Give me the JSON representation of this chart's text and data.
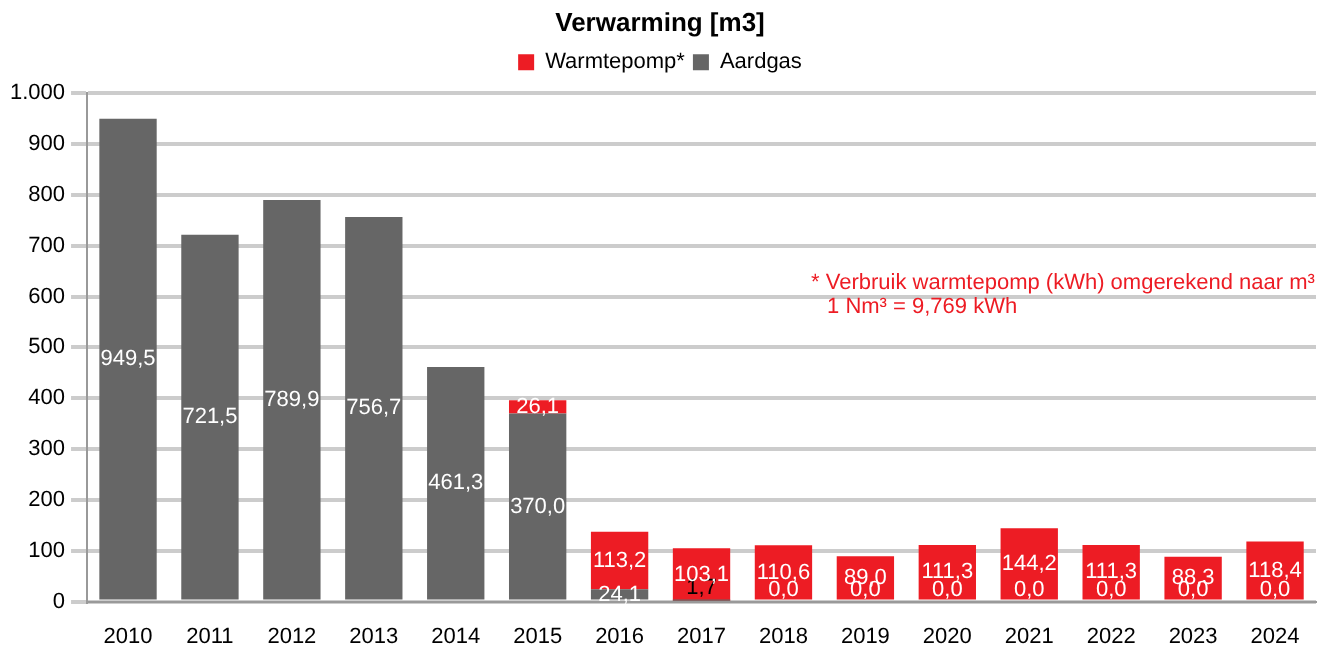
{
  "chart_data": {
    "type": "bar",
    "title": "Verwarming [m3]",
    "stacked": true,
    "legend": "top",
    "grid": "y",
    "categories": [
      "2010",
      "2011",
      "2012",
      "2013",
      "2014",
      "2015",
      "2016",
      "2017",
      "2018",
      "2019",
      "2020",
      "2021",
      "2022",
      "2023",
      "2024"
    ],
    "ylim": [
      0,
      1000
    ],
    "yticks": [
      0,
      100,
      200,
      300,
      400,
      500,
      600,
      700,
      800,
      900,
      {
        "value": 1000,
        "label": "1.000"
      }
    ],
    "series": [
      {
        "name": "Aardgas",
        "color": "#666666",
        "values": [
          949.5,
          721.5,
          789.9,
          756.7,
          461.3,
          370.0,
          24.1,
          1.7,
          0,
          0,
          0,
          0,
          0,
          0,
          0
        ],
        "value_labels": [
          "949,5",
          "721,5",
          "789,9",
          "756,7",
          "461,3",
          "370,0",
          "24,1",
          "1,7",
          "0,0",
          "0,0",
          "0,0",
          "0,0",
          "0,0",
          "0,0",
          "0,0"
        ]
      },
      {
        "name": "Warmtepomp*",
        "color": "#ed1c24",
        "values": [
          null,
          null,
          null,
          null,
          null,
          26.1,
          113.2,
          103.1,
          110.6,
          89.0,
          111.3,
          144.2,
          111.3,
          88.3,
          118.4
        ],
        "value_labels": [
          null,
          null,
          null,
          null,
          null,
          "26,1",
          "113,2",
          "103,1",
          "110,6",
          "89,0",
          "111,3",
          "144,2",
          "111,3",
          "88,3",
          "118,4"
        ]
      }
    ],
    "annotations": [
      "* Verbruik warmtepomp (kWh) omgerekend naar m³",
      "1 Nm³ = 9,769 kWh"
    ]
  }
}
